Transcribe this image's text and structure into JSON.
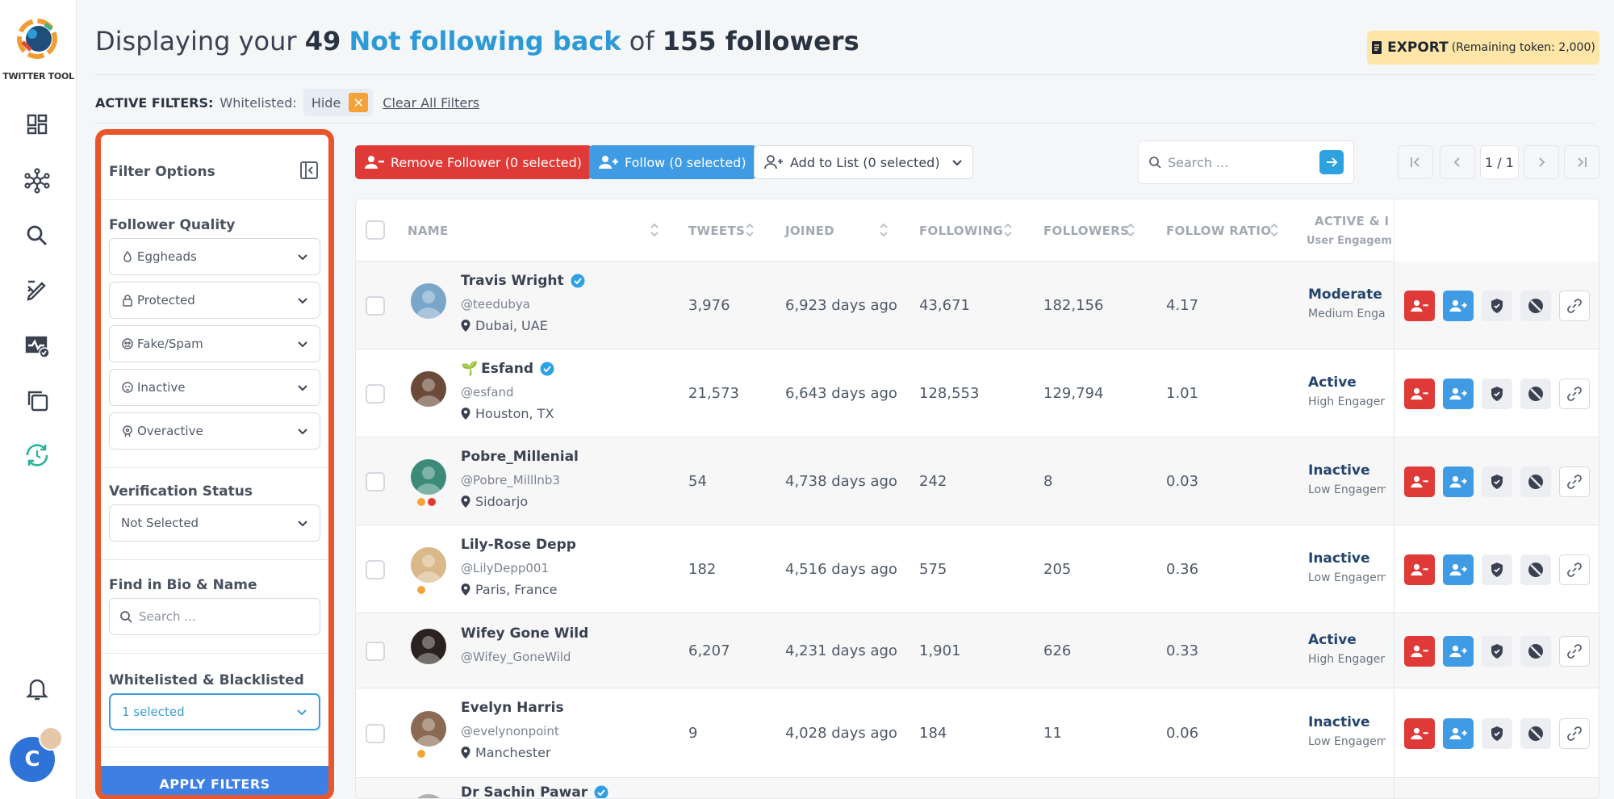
{
  "app": {
    "logo_text": "TWITTER TOOL",
    "user_initial": "C"
  },
  "sidebar_icons": [
    "dashboard-icon",
    "network-icon",
    "search-icon",
    "analytics-pen-icon",
    "monitor-check-icon",
    "copy-stack-icon",
    "sync-clock-icon",
    "bell-icon"
  ],
  "header": {
    "prefix": "Displaying your",
    "count": "49",
    "highlight": "Not following back",
    "of": "of",
    "total": "155 followers",
    "export_label": "EXPORT",
    "export_sub": "(Remaining token: 2,000)"
  },
  "active_filters": {
    "label": "ACTIVE FILTERS:",
    "key": "Whitelisted:",
    "value": "Hide",
    "clear": "Clear All Filters"
  },
  "filter_panel": {
    "title": "Filter Options",
    "quality_title": "Follower Quality",
    "quality": [
      {
        "label": "Eggheads",
        "icon": "egg-icon"
      },
      {
        "label": "Protected",
        "icon": "lock-icon"
      },
      {
        "label": "Fake/Spam",
        "icon": "spam-icon"
      },
      {
        "label": "Inactive",
        "icon": "sleep-icon"
      },
      {
        "label": "Overactive",
        "icon": "rocket-icon"
      }
    ],
    "verification_title": "Verification Status",
    "verification_value": "Not Selected",
    "bio_title": "Find in Bio & Name",
    "bio_placeholder": "Search ...",
    "wb_title": "Whitelisted & Blacklisted",
    "wb_value": "1 selected",
    "apply": "APPLY FILTERS"
  },
  "toolbar": {
    "remove": "Remove Follower (0 selected)",
    "follow": "Follow (0 selected)",
    "add_list": "Add to List (0 selected)",
    "search_placeholder": "Search ...",
    "page": "1 / 1"
  },
  "columns": {
    "name": "NAME",
    "tweets": "TWEETS",
    "joined": "JOINED",
    "following": "FOLLOWING",
    "followers": "FOLLOWERS",
    "ratio": "FOLLOW RATIO",
    "active": "ACTIVE & I",
    "active_sub": "User Engagem"
  },
  "rows": [
    {
      "name": "Travis Wright",
      "prefix": "",
      "verified": true,
      "handle": "@teedubya",
      "location": "Dubai, UAE",
      "tweets": "3,976",
      "joined": "6,923 days ago",
      "following": "43,671",
      "followers": "182,156",
      "ratio": "4.17",
      "status": "Moderate A",
      "engagement": "Medium Enga",
      "avatar": "#7aa6c9"
    },
    {
      "name": "Esfand",
      "prefix": "🌱",
      "verified": true,
      "handle": "@esfand",
      "location": "Houston, TX",
      "tweets": "21,573",
      "joined": "6,643 days ago",
      "following": "128,553",
      "followers": "129,794",
      "ratio": "1.01",
      "status": "Active",
      "engagement": "High Engager",
      "avatar": "#6b4a3a"
    },
    {
      "name": "Pobre_Millenial",
      "prefix": "",
      "verified": false,
      "handle": "@Pobre_Milllnb3",
      "location": "Sidoarjo",
      "tweets": "54",
      "joined": "4,738 days ago",
      "following": "242",
      "followers": "8",
      "ratio": "0.03",
      "status": "Inactive",
      "engagement": "Low Engagem",
      "avatar": "#3b8a7a"
    },
    {
      "name": "Lily-Rose Depp",
      "prefix": "",
      "verified": false,
      "handle": "@LilyDepp001",
      "location": "Paris, France",
      "tweets": "182",
      "joined": "4,516 days ago",
      "following": "575",
      "followers": "205",
      "ratio": "0.36",
      "status": "Inactive",
      "engagement": "Low Engagem",
      "avatar": "#d9b88a"
    },
    {
      "name": "Wifey Gone Wild",
      "prefix": "",
      "verified": false,
      "handle": "@Wifey_GoneWild",
      "location": "",
      "tweets": "6,207",
      "joined": "4,231 days ago",
      "following": "1,901",
      "followers": "626",
      "ratio": "0.33",
      "status": "Active",
      "engagement": "High Engager",
      "avatar": "#2a2220"
    },
    {
      "name": "Evelyn Harris",
      "prefix": "",
      "verified": false,
      "handle": "@evelynonpoint",
      "location": "Manchester",
      "tweets": "9",
      "joined": "4,028 days ago",
      "following": "184",
      "followers": "11",
      "ratio": "0.06",
      "status": "Inactive",
      "engagement": "Low Engagem",
      "avatar": "#8a6a52"
    },
    {
      "name": "Dr Sachin Pawar",
      "prefix": "",
      "verified": true,
      "handle": "",
      "location": "",
      "tweets": "",
      "joined": "",
      "following": "",
      "followers": "",
      "ratio": "",
      "status": "",
      "engagement": "",
      "avatar": "#b0b0b0"
    }
  ],
  "colors": {
    "accent": "#2c9ad6",
    "danger": "#df3a37",
    "primary": "#3f9be3",
    "highlight_border": "#e8562b",
    "export_bg": "#fde6a8"
  }
}
